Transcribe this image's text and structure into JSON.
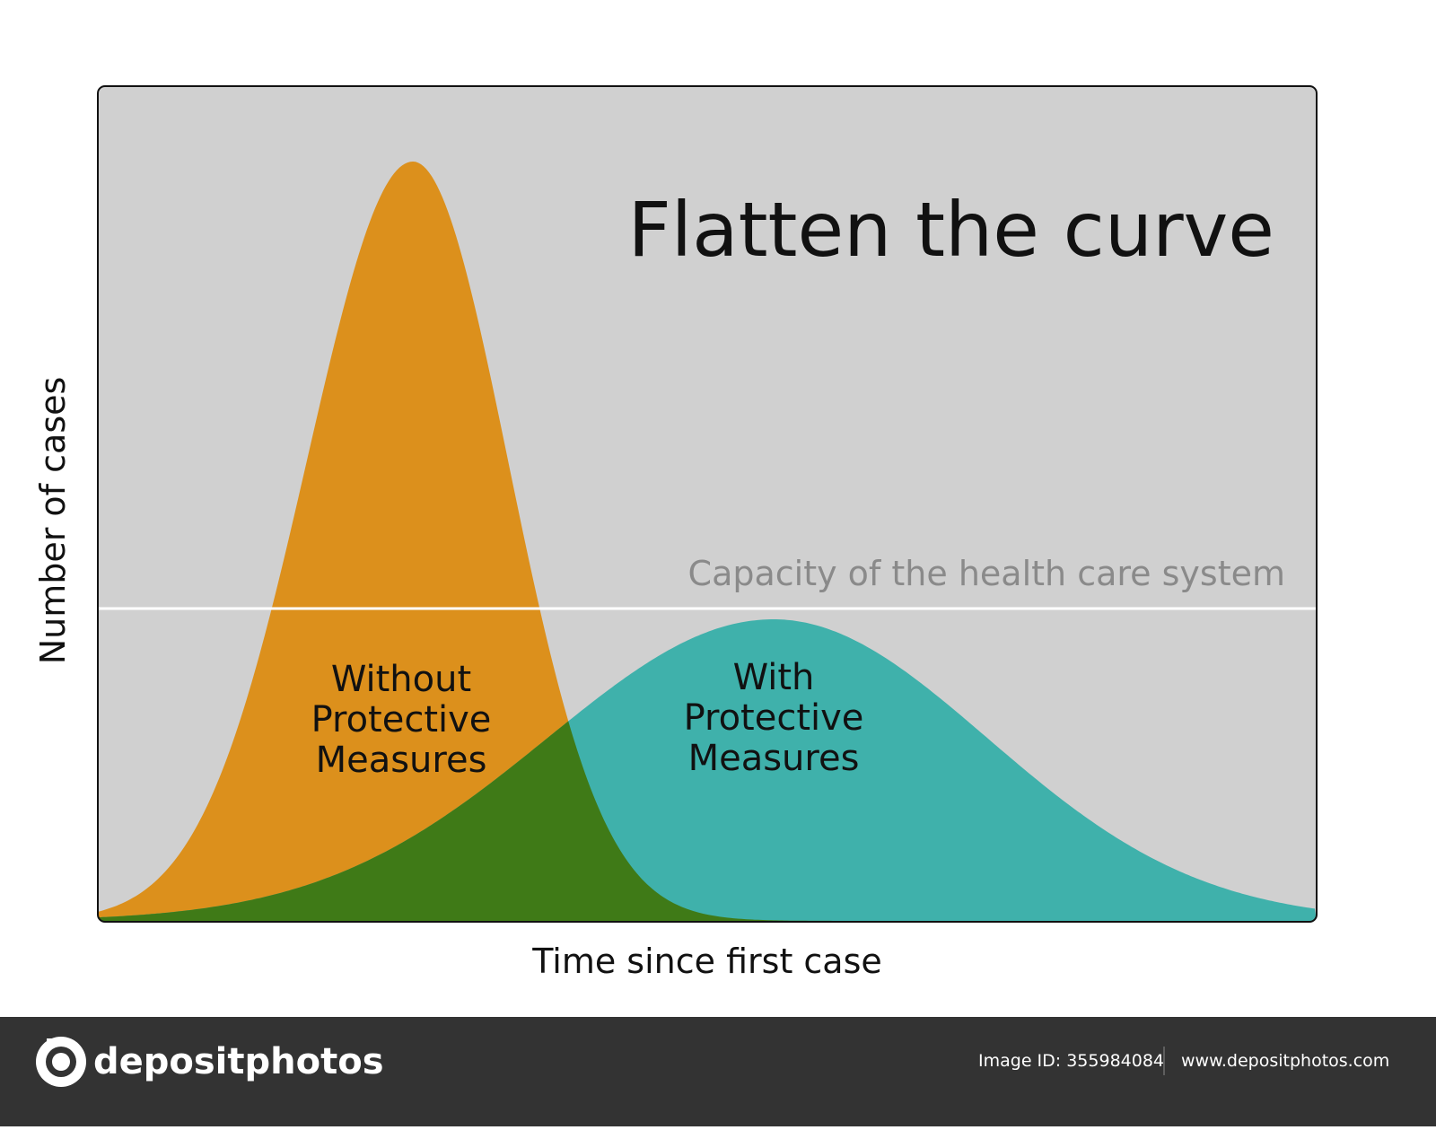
{
  "title": "Flatten the curve",
  "y_axis_label": "Number of cases",
  "x_axis_label": "Time since first case",
  "capacity_label": "Capacity of the health care system",
  "curves": [
    {
      "label_lines": [
        "Without",
        "Protective",
        "Measures"
      ]
    },
    {
      "label_lines": [
        "With",
        "Protective",
        "Measures"
      ]
    }
  ],
  "footer": {
    "brand": "depositphotos",
    "image_id": "Image ID: 355984084",
    "website": "www.depositphotos.com"
  }
}
